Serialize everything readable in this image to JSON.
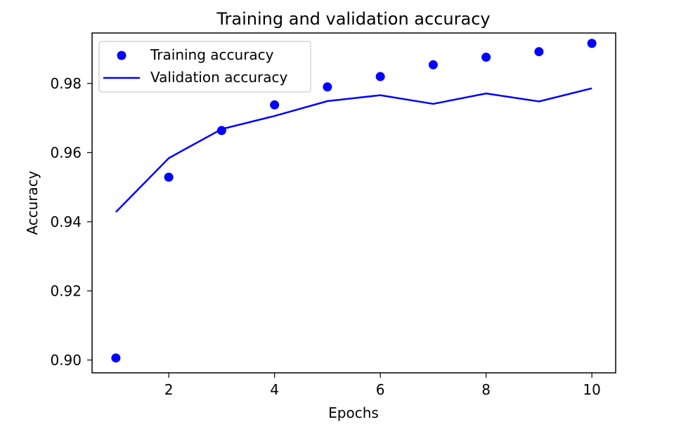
{
  "chart_data": {
    "type": "line",
    "title": "Training and validation accuracy",
    "xlabel": "Epochs",
    "ylabel": "Accuracy",
    "xlim": [
      0.55,
      10.45
    ],
    "ylim": [
      0.8963,
      0.9946
    ],
    "xticks": [
      2,
      4,
      6,
      8,
      10
    ],
    "xtick_labels": [
      "2",
      "4",
      "6",
      "8",
      "10"
    ],
    "yticks": [
      0.9,
      0.92,
      0.94,
      0.96,
      0.98
    ],
    "ytick_labels": [
      "0.90",
      "0.92",
      "0.94",
      "0.96",
      "0.98"
    ],
    "grid": false,
    "legend_position": "top-left",
    "x": [
      1,
      2,
      3,
      4,
      5,
      6,
      7,
      8,
      9,
      10
    ],
    "series": [
      {
        "name": "Training accuracy",
        "style": "markers",
        "color": "#0000ff",
        "values": [
          0.9006,
          0.9529,
          0.9664,
          0.9738,
          0.979,
          0.982,
          0.9854,
          0.9876,
          0.9892,
          0.9916
        ]
      },
      {
        "name": "Validation accuracy",
        "style": "line",
        "color": "#0000ff",
        "values": [
          0.9428,
          0.9584,
          0.9668,
          0.9706,
          0.9749,
          0.9766,
          0.9741,
          0.9771,
          0.9748,
          0.9786
        ]
      }
    ]
  }
}
